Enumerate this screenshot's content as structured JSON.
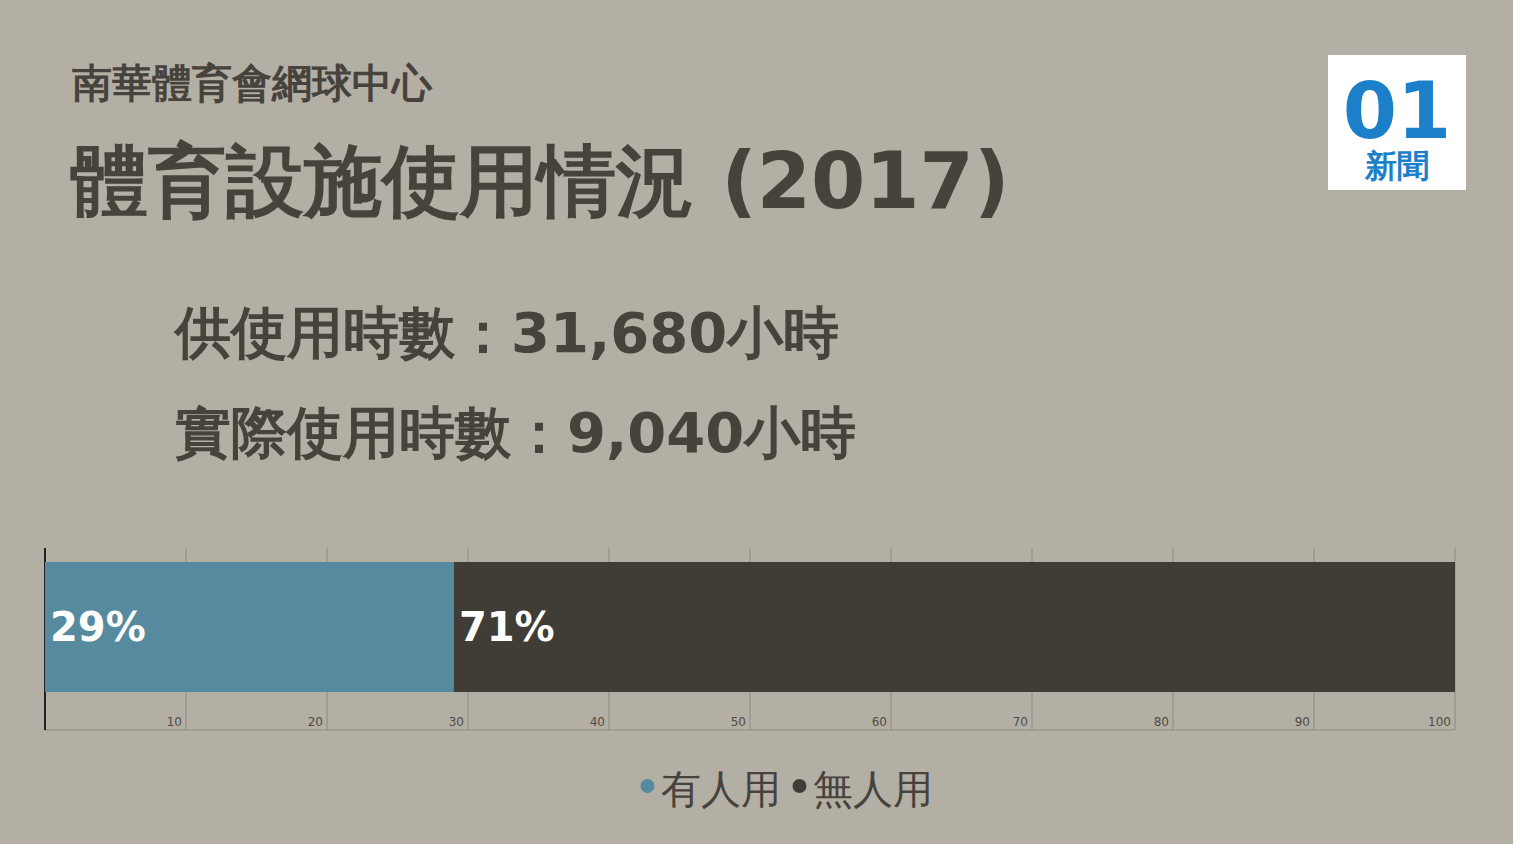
{
  "chart_data": {
    "type": "bar",
    "orientation": "horizontal",
    "stacked": true,
    "subtitle": "南華體育會網球中心",
    "title": "體育設施使用情況 (2017)",
    "annotations": [
      "供使用時數：31,680小時",
      "實際使用時數：9,040小時"
    ],
    "logo": [
      "01",
      "新聞"
    ],
    "categories": [
      null
    ],
    "series": [
      {
        "name": "有人用",
        "color": "#568a9e",
        "values": [
          29
        ],
        "value_labels": [
          "29%"
        ]
      },
      {
        "name": "無人用",
        "color": "#403c36",
        "values": [
          71
        ],
        "value_labels": [
          "71%"
        ]
      }
    ],
    "xlim": [
      0,
      100
    ],
    "xticks": [
      10,
      20,
      30,
      40,
      50,
      60,
      70,
      80,
      90,
      100
    ],
    "grid": true,
    "data_labels": true,
    "legend": "bottom"
  }
}
